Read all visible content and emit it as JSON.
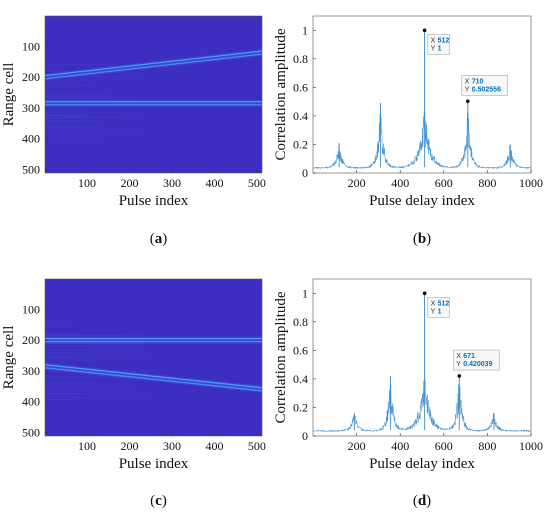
{
  "colors": {
    "map_bg": "#3b2ec0",
    "map_track": "#4aa6ff",
    "line": "#3d8fd1",
    "tip_value": "#0072BD"
  },
  "chart_data": [
    {
      "type": "heatmap",
      "panel": "(a)",
      "caption_letter": "a",
      "xlabel": "Pulse index",
      "ylabel": "Range cell",
      "xlim": [
        1,
        512
      ],
      "ylim": [
        1,
        512
      ],
      "y_reversed": true,
      "xticks": [
        100,
        200,
        300,
        400,
        500
      ],
      "yticks": [
        100,
        200,
        300,
        400,
        500
      ],
      "tracks": [
        {
          "shape": "line",
          "x": [
            1,
            512
          ],
          "y": [
            200,
            120
          ]
        },
        {
          "shape": "line",
          "x": [
            1,
            512
          ],
          "y": [
            285,
            285
          ]
        }
      ]
    },
    {
      "type": "line",
      "panel": "(b)",
      "caption_letter": "b",
      "xlabel": "Pulse delay index",
      "ylabel": "Correlation amplitude",
      "xlim": [
        0,
        1000
      ],
      "ylim": [
        0,
        1.1
      ],
      "xticks": [
        200,
        400,
        600,
        800,
        1000
      ],
      "yticks": [
        0,
        0.2,
        0.4,
        0.6,
        0.8,
        1
      ],
      "peaks": [
        {
          "x": 120,
          "y": 0.21
        },
        {
          "x": 310,
          "y": 0.49
        },
        {
          "x": 512,
          "y": 1.0
        },
        {
          "x": 710,
          "y": 0.502556
        },
        {
          "x": 905,
          "y": 0.2
        }
      ],
      "datatips": [
        {
          "x": 512,
          "y": 1,
          "x_text": "512",
          "y_text": "1"
        },
        {
          "x": 710,
          "y": 0.502556,
          "x_text": "710",
          "y_text": "0.502556"
        }
      ]
    },
    {
      "type": "heatmap",
      "panel": "(c)",
      "caption_letter": "c",
      "xlabel": "Pulse index",
      "ylabel": "Range cell",
      "xlim": [
        1,
        512
      ],
      "ylim": [
        1,
        512
      ],
      "y_reversed": true,
      "xticks": [
        100,
        200,
        300,
        400,
        500
      ],
      "yticks": [
        100,
        200,
        300,
        400,
        500
      ],
      "tracks": [
        {
          "shape": "line",
          "x": [
            1,
            512
          ],
          "y": [
            200,
            200
          ]
        },
        {
          "shape": "line",
          "x": [
            1,
            512
          ],
          "y": [
            285,
            360
          ]
        }
      ]
    },
    {
      "type": "line",
      "panel": "(d)",
      "caption_letter": "d",
      "xlabel": "Pulse delay index",
      "ylabel": "Correlation amplitude",
      "xlim": [
        0,
        1000
      ],
      "ylim": [
        0,
        1.1
      ],
      "xticks": [
        200,
        400,
        600,
        800,
        1000
      ],
      "yticks": [
        0,
        0.2,
        0.4,
        0.6,
        0.8,
        1
      ],
      "peaks": [
        {
          "x": 190,
          "y": 0.16
        },
        {
          "x": 355,
          "y": 0.42
        },
        {
          "x": 512,
          "y": 1.0
        },
        {
          "x": 671,
          "y": 0.420039
        },
        {
          "x": 830,
          "y": 0.16
        }
      ],
      "datatips": [
        {
          "x": 512,
          "y": 1,
          "x_text": "512",
          "y_text": "1"
        },
        {
          "x": 671,
          "y": 0.420039,
          "x_text": "671",
          "y_text": "0.420039"
        }
      ]
    }
  ]
}
